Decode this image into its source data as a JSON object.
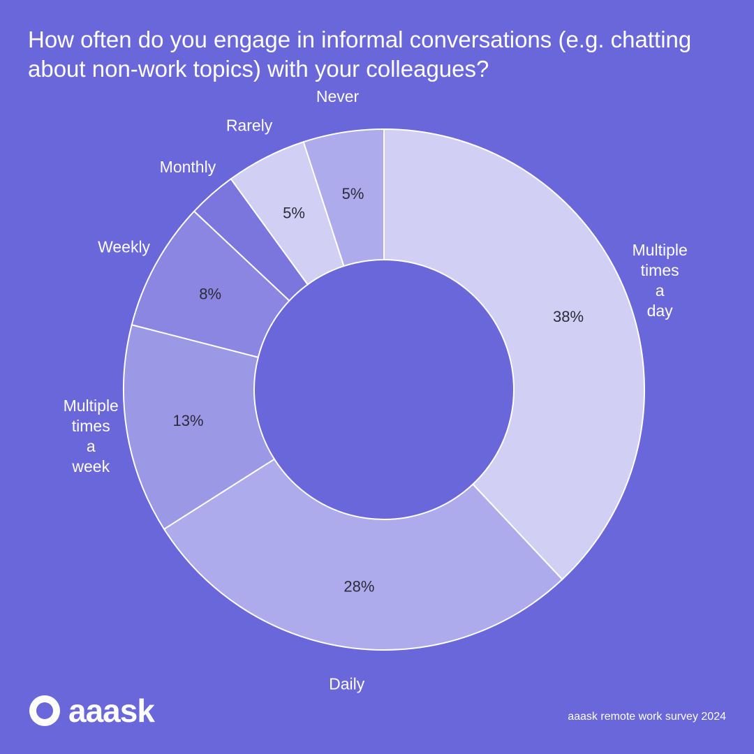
{
  "title": "How often do you engage in informal conversations (e.g. chatting about non-work topics) with your colleagues?",
  "brand": {
    "name": "aaask",
    "logo_icon": "aaask-logo-icon"
  },
  "footer": "aaask remote work survey 2024",
  "colors": {
    "background": "#6A67DB",
    "slice_light": "#D1D0F4",
    "slice_mid": "#ADABEB",
    "slice_dark": "#9B98E6",
    "slice_darker": "#8A86E1",
    "slice_darkest": "#7A76DD",
    "text_dark": "#2B2B3A",
    "text_light": "#FFFFFF"
  },
  "chart_data": {
    "type": "pie",
    "title": "How often do you engage in informal conversations (e.g. chatting about non-work topics) with your colleagues?",
    "categories": [
      "Multiple times a day",
      "Daily",
      "Multiple times a week",
      "Weekly",
      "Monthly",
      "Rarely",
      "Never"
    ],
    "label_lines": [
      [
        "Multiple",
        "times",
        "a",
        "day"
      ],
      [
        "Daily"
      ],
      [
        "Multiple",
        "times",
        "a",
        "week"
      ],
      [
        "Weekly"
      ],
      [
        "Monthly"
      ],
      [
        "Rarely"
      ],
      [
        "Never"
      ]
    ],
    "values": [
      38,
      28,
      13,
      8,
      3,
      5,
      5
    ],
    "value_labels": [
      "38%",
      "28%",
      "13%",
      "8%",
      "",
      "5%",
      "5%"
    ],
    "slice_colors": [
      "#D1D0F4",
      "#ADABEB",
      "#9B98E6",
      "#8A86E1",
      "#7A76DD",
      "#D1D0F4",
      "#ADABEB"
    ],
    "start": "12 o'clock",
    "direction": "clockwise",
    "donut": true
  }
}
